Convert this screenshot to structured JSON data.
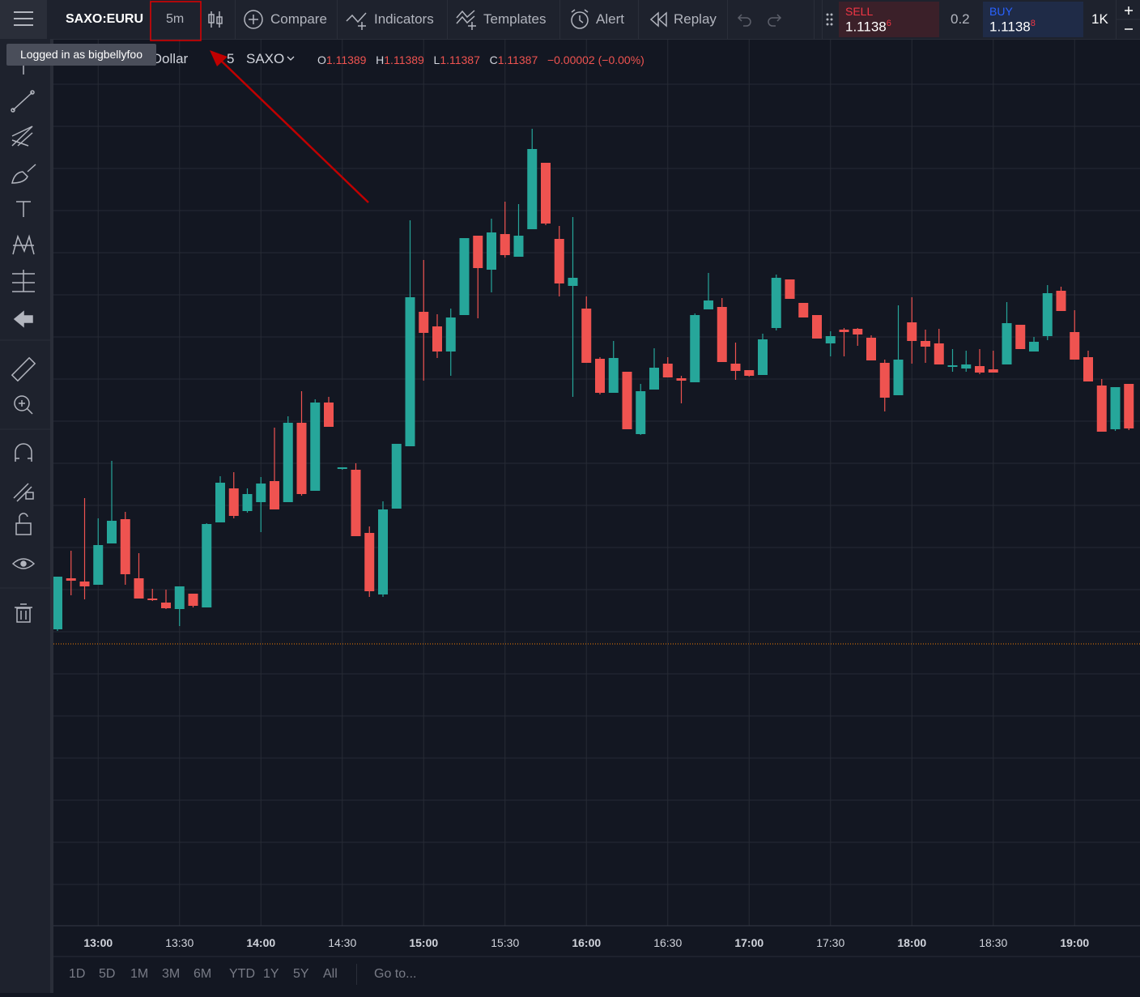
{
  "toolbar": {
    "symbol": "SAXO:EURU",
    "interval": "5m",
    "compare": "Compare",
    "indicators": "Indicators",
    "templates": "Templates",
    "alert": "Alert",
    "replay": "Replay"
  },
  "tooltip": "Logged in as bigbellyfoo",
  "trade": {
    "sell_label": "SELL",
    "sell_price": "1.1138",
    "sell_pip": "6",
    "spread": "0.2",
    "buy_label": "BUY",
    "buy_price": "1.1138",
    "buy_pip": "8",
    "quantity": "1K"
  },
  "legend": {
    "name": "U.S. Dollar",
    "interval": "5",
    "exchange": "SAXO",
    "o_label": "O",
    "o": "1.11389",
    "h_label": "H",
    "h": "1.11389",
    "l_label": "L",
    "l": "1.11387",
    "c_label": "C",
    "c": "1.11387",
    "change": "−0.00002 (−0.00%)"
  },
  "chart_data": {
    "type": "candlestick",
    "x": [
      null,
      null,
      null,
      "13:00",
      null,
      null,
      null,
      null,
      null,
      "13:30",
      null,
      null,
      null,
      null,
      null,
      "14:00",
      null,
      null,
      null,
      null,
      null,
      "14:30",
      null,
      null,
      null,
      null,
      null,
      "15:00",
      null,
      null,
      null,
      null,
      null,
      "15:30",
      null,
      null,
      null,
      null,
      null,
      "16:00",
      null,
      null,
      null,
      null,
      null,
      "16:30",
      null,
      null,
      null,
      null,
      null,
      "17:00",
      null,
      null,
      null,
      null,
      null,
      "17:30",
      null,
      null,
      null,
      null,
      null,
      "18:00",
      null,
      null,
      null,
      null,
      null,
      "18:30",
      null,
      null,
      null,
      null,
      null,
      "19:00",
      null,
      null,
      null,
      null
    ],
    "open": [
      1.11335,
      1.113476,
      1.113468,
      1.11346,
      1.113562,
      1.113622,
      1.113476,
      1.113426,
      1.113416,
      1.1134,
      1.113438,
      1.113404,
      1.113614,
      1.113698,
      1.113642,
      1.113664,
      1.113716,
      1.113664,
      1.11386,
      1.113692,
      1.11391,
      1.113746,
      1.113744,
      1.113588,
      1.113436,
      1.113648,
      1.113802,
      1.114134,
      1.114098,
      1.114036,
      1.114126,
      1.114322,
      1.114238,
      1.114326,
      1.11427,
      1.114338,
      1.114502,
      1.114314,
      1.114198,
      1.114142,
      1.114018,
      1.113934,
      1.113986,
      1.113832,
      1.113942,
      1.114006,
      1.11397,
      1.11396,
      1.11414,
      1.114146,
      1.114006,
      1.11399,
      1.113978,
      1.114094,
      1.114214,
      1.114156,
      1.114126,
      1.114056,
      1.11409,
      1.114092,
      1.11407,
      1.114008,
      1.113928,
      1.114108,
      1.114062,
      1.114056,
      1.113998,
      1.113994,
      1.114,
      1.113992,
      1.114004,
      1.114102,
      1.114036,
      1.114074,
      1.114186,
      1.114084,
      1.114022,
      1.113952,
      1.113844,
      1.113956
    ],
    "high": [
      1.11348,
      1.113544,
      1.113674,
      1.113624,
      1.113766,
      1.11364,
      1.113538,
      1.11345,
      1.113448,
      1.113456,
      1.113438,
      1.113612,
      1.113728,
      1.113738,
      1.113698,
      1.113726,
      1.113848,
      1.113876,
      1.113938,
      1.113918,
      1.113924,
      1.11375,
      1.11376,
      1.113604,
      1.113666,
      1.113808,
      1.11436,
      1.114262,
      1.114128,
      1.114142,
      1.114316,
      1.114322,
      1.114364,
      1.114406,
      1.1144,
      1.114586,
      1.114502,
      1.114346,
      1.114368,
      1.114172,
      1.114022,
      1.114062,
      1.113986,
      1.113956,
      1.114044,
      1.114022,
      1.113976,
      1.11413,
      1.11423,
      1.114168,
      1.114058,
      1.11399,
      1.11408,
      1.114226,
      1.114214,
      1.114156,
      1.114126,
      1.114086,
      1.114094,
      1.114094,
      1.114076,
      1.114016,
      1.11415,
      1.11417,
      1.11409,
      1.114092,
      1.114042,
      1.114038,
      1.114042,
      1.114038,
      1.114158,
      1.114102,
      1.114072,
      1.1142,
      1.114196,
      1.114138,
      1.114038,
      1.113968,
      1.113948,
      1.113956
    ],
    "low": [
      1.113346,
      1.113434,
      1.113424,
      1.11346,
      1.113562,
      1.11346,
      1.113426,
      1.11342,
      1.1134,
      1.113358,
      1.113404,
      1.113404,
      1.113614,
      1.113624,
      1.113638,
      1.11359,
      1.113646,
      1.113664,
      1.11368,
      1.113692,
      1.11385,
      1.113744,
      1.11358,
      1.11343,
      1.11343,
      1.113648,
      1.113802,
      1.113964,
      1.11402,
      1.113976,
      1.114126,
      1.114118,
      1.114182,
      1.114268,
      1.11427,
      1.114338,
      1.114348,
      1.114172,
      1.113924,
      1.114008,
      1.11393,
      1.113934,
      1.113844,
      1.11383,
      1.113942,
      1.113972,
      1.113908,
      1.11396,
      1.11414,
      1.11401,
      1.113966,
      1.113974,
      1.113978,
      1.114088,
      1.114166,
      1.11412,
      1.114068,
      1.114024,
      1.114024,
      1.11405,
      1.114014,
      1.113888,
      1.113928,
      1.114006,
      1.114008,
      1.114004,
      1.113986,
      1.113986,
      1.11398,
      1.113984,
      1.114004,
      1.114042,
      1.114036,
      1.114064,
      1.114136,
      1.114016,
      1.113962,
      1.113838,
      1.11384,
      1.113842
    ],
    "close": [
      1.11348,
      1.11347,
      1.113456,
      1.113558,
      1.113618,
      1.113486,
      1.113426,
      1.113422,
      1.113402,
      1.113456,
      1.113408,
      1.11361,
      1.113712,
      1.11363,
      1.113684,
      1.11371,
      1.113646,
      1.11386,
      1.113684,
      1.11391,
      1.11385,
      1.11375,
      1.11358,
      1.113444,
      1.113646,
      1.113808,
      1.11417,
      1.114082,
      1.114036,
      1.11412,
      1.114316,
      1.114242,
      1.11433,
      1.114274,
      1.114322,
      1.114536,
      1.114352,
      1.114204,
      1.114218,
      1.114008,
      1.113934,
      1.11402,
      1.113844,
      1.113938,
      1.113996,
      1.113972,
      1.113964,
      1.114126,
      1.114162,
      1.11401,
      1.113988,
      1.113976,
      1.114066,
      1.114218,
      1.114166,
      1.11412,
      1.114068,
      1.114074,
      1.114084,
      1.114078,
      1.114014,
      1.113922,
      1.114016,
      1.114062,
      1.114048,
      1.114004,
      1.114002,
      1.114004,
      1.113984,
      1.113984,
      1.114106,
      1.114042,
      1.11406,
      1.11418,
      1.114136,
      1.114016,
      1.113962,
      1.113838,
      1.113948,
      1.113846
    ],
    "ylim": [
      1.1127,
      1.1148
    ],
    "up_color": "#26a69a",
    "down_color": "#ef5350",
    "grid": true,
    "price_line": 1.113314,
    "price_line_color": "#f57c00"
  },
  "ranges": [
    "1D",
    "5D",
    "1M",
    "3M",
    "6M",
    "YTD",
    "1Y",
    "5Y",
    "All"
  ],
  "goto": "Go to..."
}
